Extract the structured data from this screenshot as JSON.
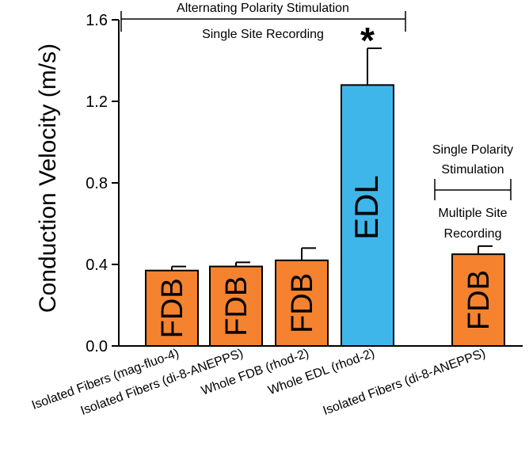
{
  "chart_data": {
    "type": "bar",
    "ylabel": "Conduction Velocity (m/s)",
    "xlabel": "",
    "ylim": [
      0,
      1.6
    ],
    "yticks": [
      "0.0",
      "0.4",
      "0.8",
      "1.2",
      "1.6"
    ],
    "grid": false,
    "categories": [
      "Isolated Fibers (mag-fluo-4)",
      "Isolated Fibers (di-8-ANEPPS)",
      "Whole FDB (rhod-2)",
      "Whole EDL (rhod-2)",
      "Isolated Fibers (di-8-ANEPPS)"
    ],
    "values": [
      0.37,
      0.39,
      0.42,
      1.28,
      0.45
    ],
    "errors": [
      0.02,
      0.02,
      0.06,
      0.18,
      0.04
    ],
    "bar_labels": [
      "FDB",
      "FDB",
      "FDB",
      "EDL",
      "FDB"
    ],
    "colors": [
      "#f4822f",
      "#f4822f",
      "#f4822f",
      "#3fb6ea",
      "#f4822f"
    ],
    "significance_marker": {
      "bar_index": 3,
      "symbol": "*"
    },
    "annotations": {
      "group1_top": "Alternating Polarity Stimulation",
      "group1_bottom": "Single Site Recording",
      "group2_top_line1": "Single Polarity",
      "group2_top_line2": "Stimulation",
      "group2_bottom_line1": "Multiple Site",
      "group2_bottom_line2": "Recording"
    }
  }
}
